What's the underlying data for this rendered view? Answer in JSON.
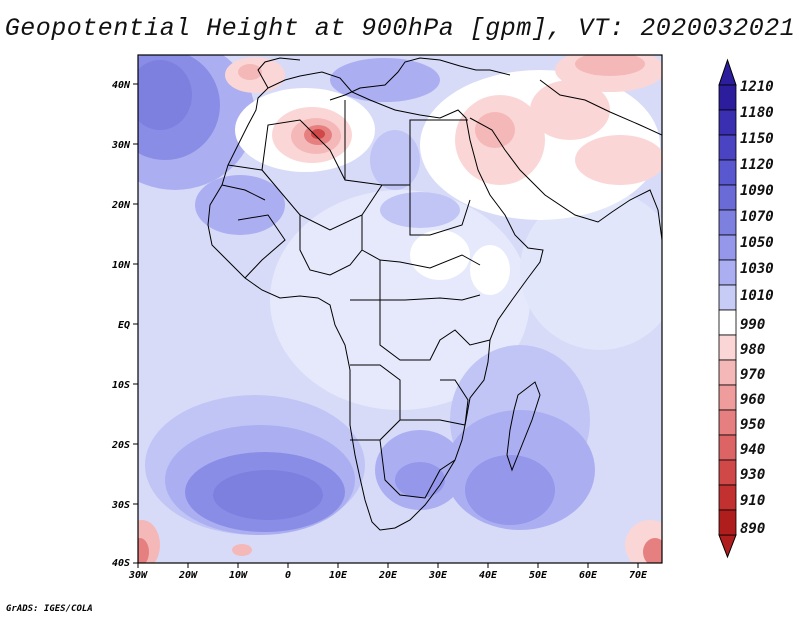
{
  "title": "Geopotential Height at 900hPa [gpm], VT: 2020032021",
  "credit": "GrADS: IGES/COLA",
  "map": {
    "region": "Africa",
    "variable": "Geopotential Height",
    "level": "900hPa",
    "units": "gpm",
    "valid_time": "2020032021",
    "lon_labels": [
      "30W",
      "20W",
      "10W",
      "0",
      "10E",
      "20E",
      "30E",
      "40E",
      "50E",
      "60E",
      "70E"
    ],
    "lat_labels": [
      "40N",
      "30N",
      "20N",
      "10N",
      "EQ",
      "10S",
      "20S",
      "30S",
      "40S"
    ]
  },
  "colorbar": {
    "labels": [
      "1210",
      "1180",
      "1150",
      "1120",
      "1090",
      "1070",
      "1050",
      "1030",
      "1010",
      "990",
      "980",
      "970",
      "960",
      "950",
      "940",
      "930",
      "910",
      "890"
    ],
    "colors": [
      "#2b1d9c",
      "#3a2fb0",
      "#4b44c2",
      "#5a58cf",
      "#6b6bd8",
      "#7e80e0",
      "#9497ea",
      "#abaff2",
      "#c7ccf7",
      "#ffffff",
      "#fbd6d6",
      "#f5b8b8",
      "#ee9c9c",
      "#e68080",
      "#dc6464",
      "#d04848",
      "#c33030",
      "#b01d1d"
    ]
  }
}
